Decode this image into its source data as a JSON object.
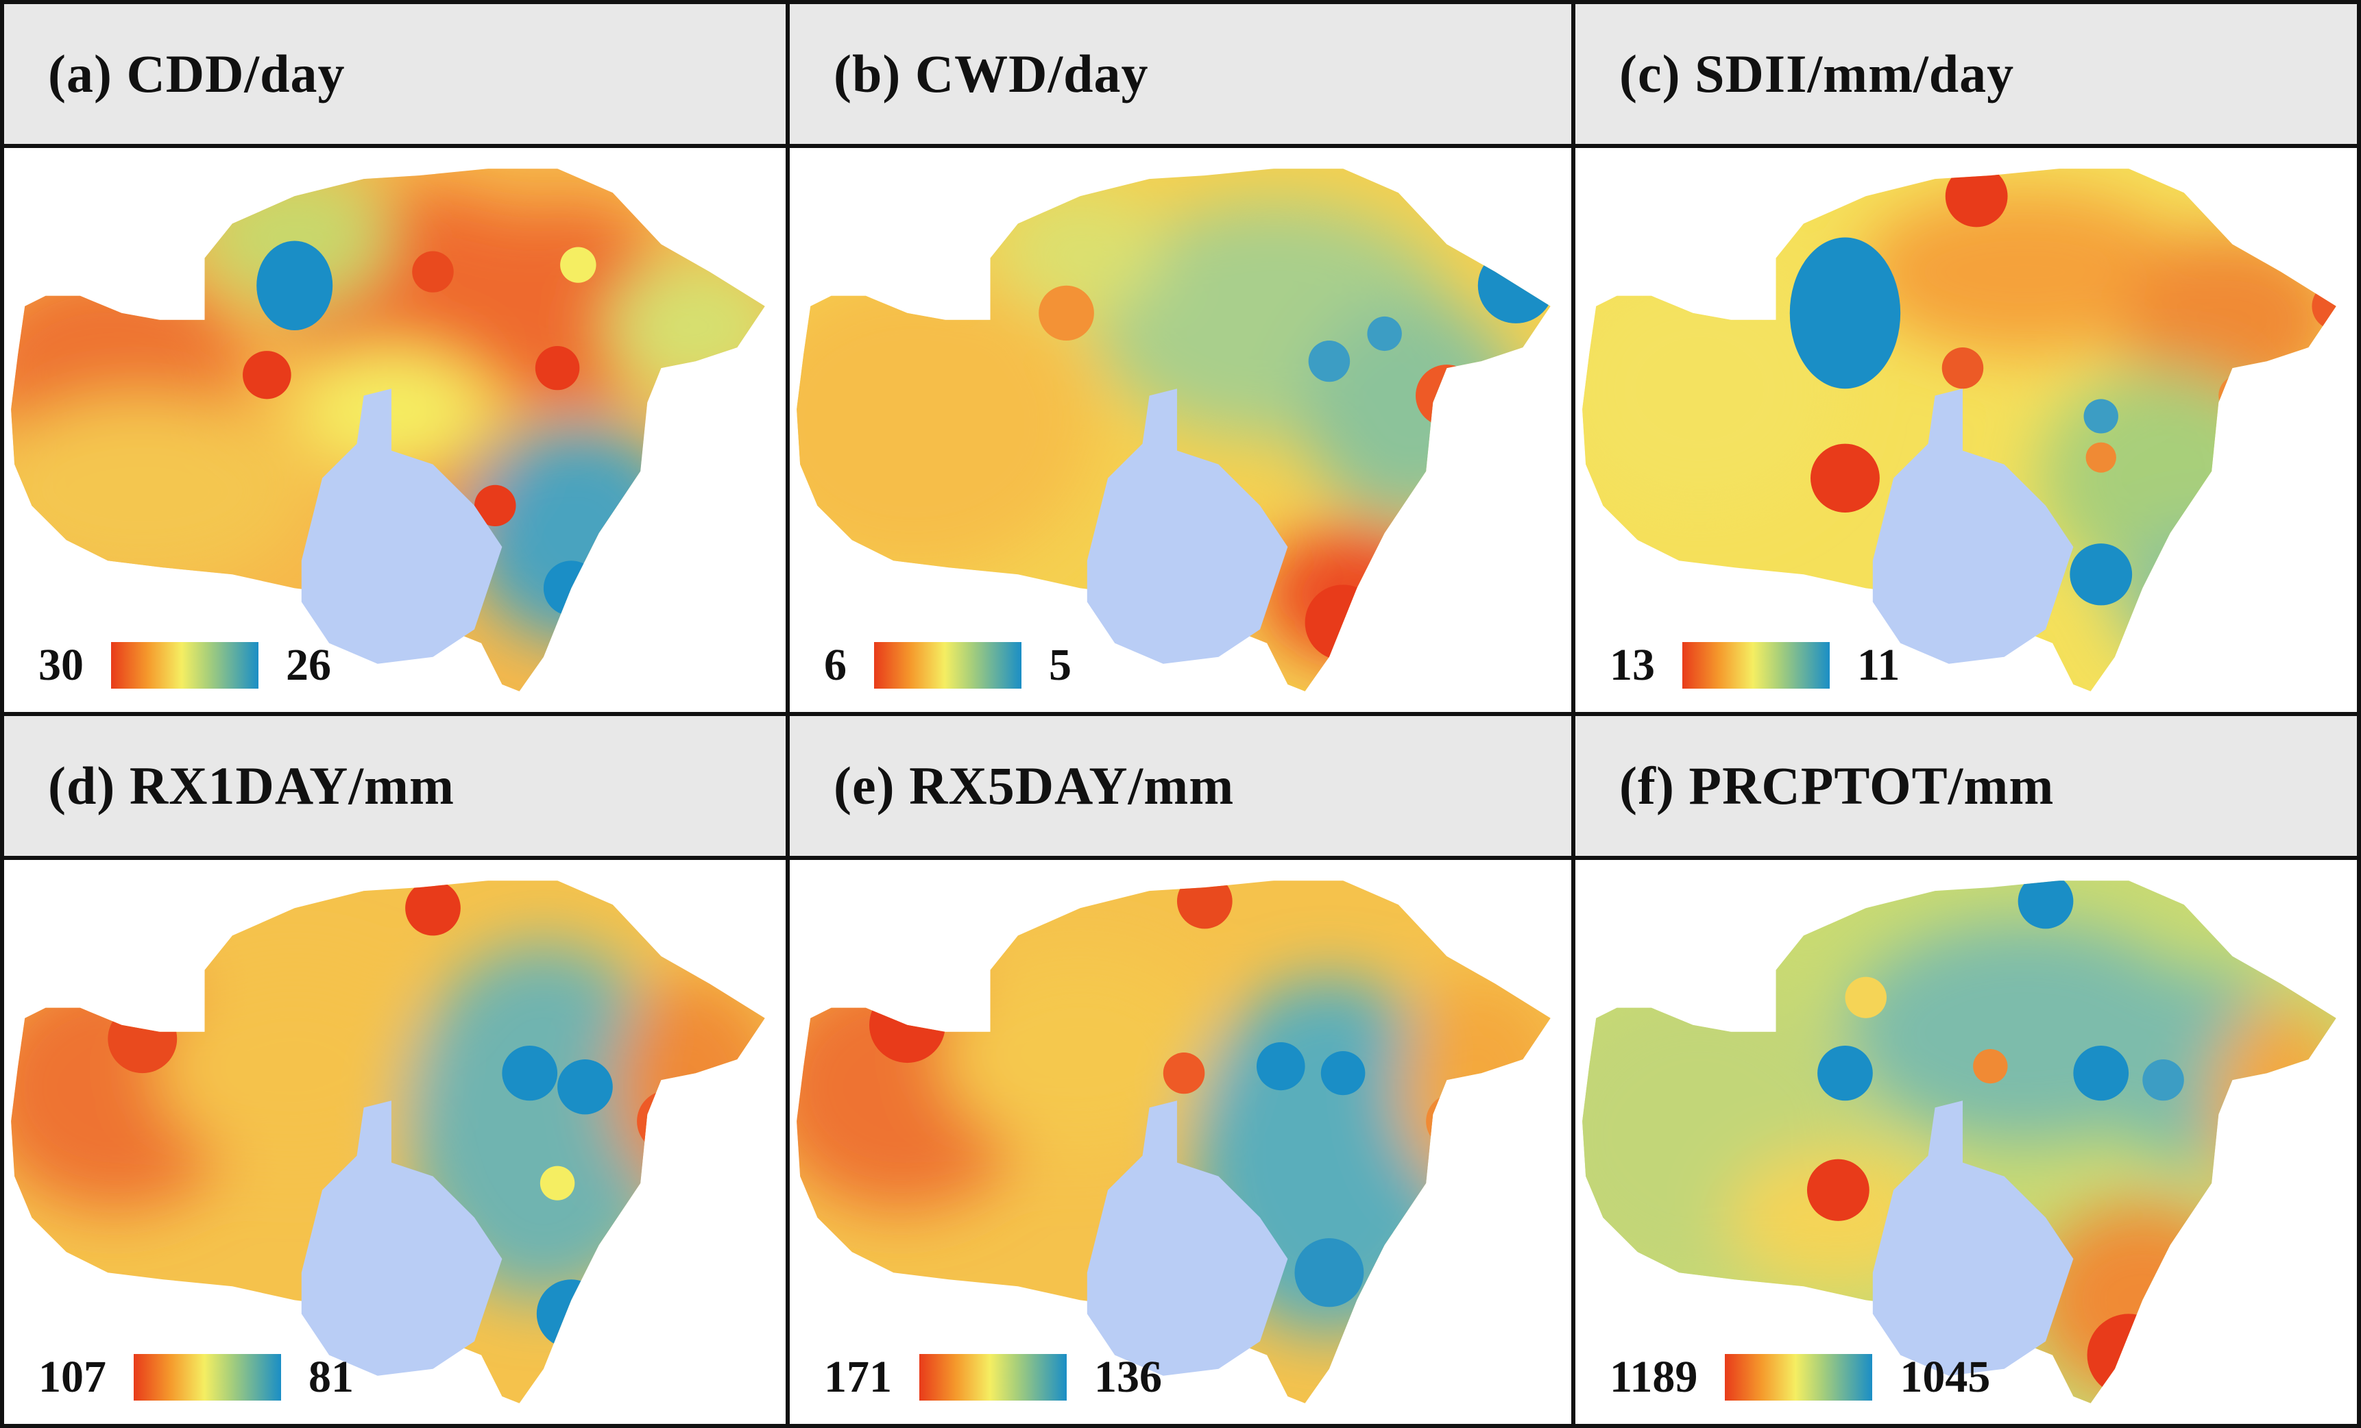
{
  "panels": [
    {
      "id": "a",
      "title": "(a) CDD/day",
      "legend_left": "30",
      "legend_right": "26"
    },
    {
      "id": "b",
      "title": "(b) CWD/day",
      "legend_left": "6",
      "legend_right": "5"
    },
    {
      "id": "c",
      "title": "(c) SDII/mm/day",
      "legend_left": "13",
      "legend_right": "11"
    },
    {
      "id": "d",
      "title": "(d) RX1DAY/mm",
      "legend_left": "107",
      "legend_right": "81"
    },
    {
      "id": "e",
      "title": "(e) RX5DAY/mm",
      "legend_left": "171",
      "legend_right": "136"
    },
    {
      "id": "f",
      "title": "(f) PRCPTOT/mm",
      "legend_left": "1189",
      "legend_right": "1045"
    }
  ],
  "colors": {
    "high": "#e83b1a",
    "mid_high": "#f59a2c",
    "mid": "#f5ee62",
    "mid_low": "#a8cf7a",
    "low": "#1a8ec6",
    "lake": "#b9cdf5",
    "header_bg": "#e8e8e8",
    "border": "#111111"
  }
}
